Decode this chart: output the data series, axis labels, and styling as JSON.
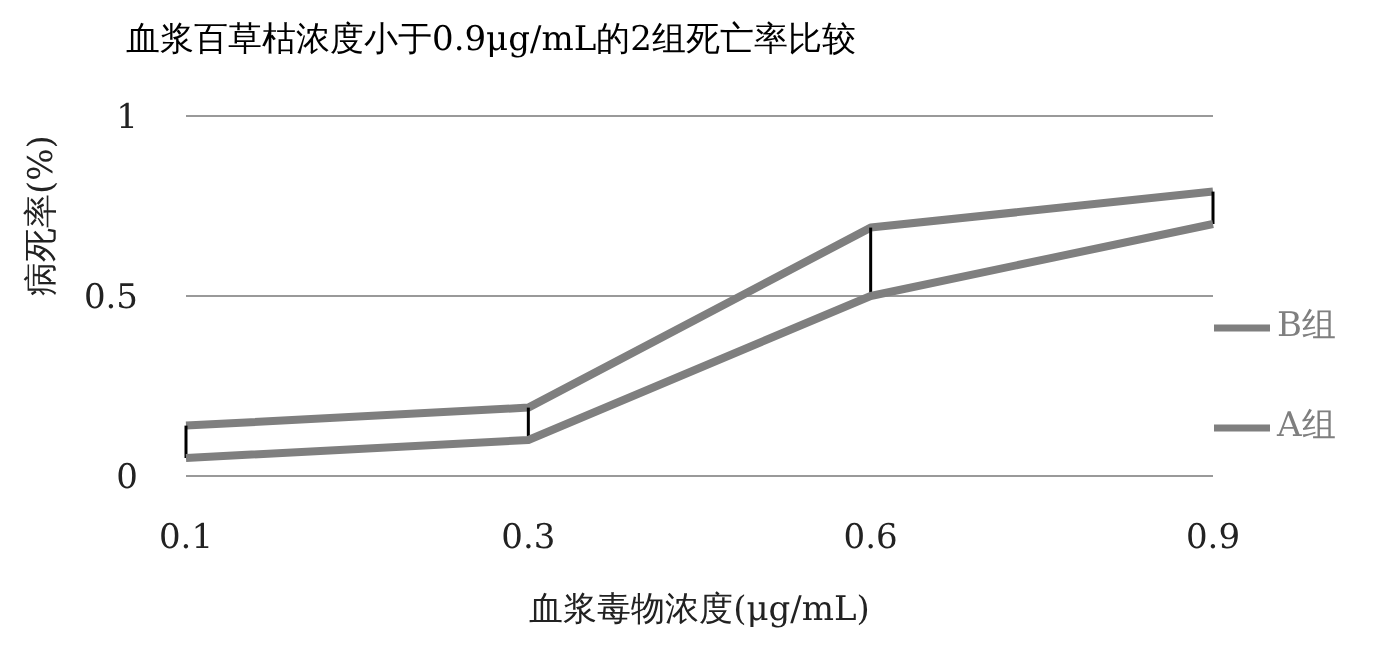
{
  "chart_data": {
    "type": "line",
    "title": "血浆百草枯浓度小于0.9μg/mL的2组死亡率比较",
    "xlabel": "血浆毒物浓度(μg/mL)",
    "ylabel": "病死率(%)",
    "categories": [
      "0.1",
      "0.3",
      "0.6",
      "0.9"
    ],
    "series": [
      {
        "name": "B组",
        "color": "#7f7f7f",
        "values": [
          0.14,
          0.19,
          0.69,
          0.79
        ]
      },
      {
        "name": "A组",
        "color": "#7f7f7f",
        "values": [
          0.05,
          0.1,
          0.5,
          0.7
        ],
        "errors": [
          [
            0.05,
            0.14
          ],
          [
            0.1,
            0.19
          ],
          [
            0.5,
            0.69
          ],
          [
            0.7,
            0.79
          ]
        ]
      }
    ],
    "ylim": [
      0,
      1
    ],
    "yticks": [
      0,
      0.5,
      1
    ],
    "grid": "y",
    "legend": "right",
    "marker": "none",
    "line_style": "solid"
  }
}
